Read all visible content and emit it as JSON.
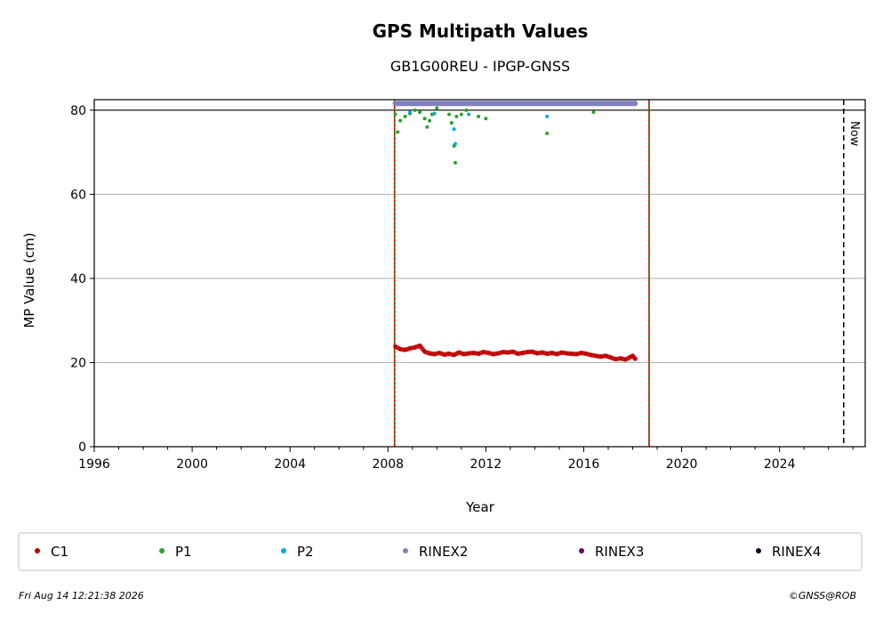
{
  "chart_data": {
    "type": "scatter",
    "title": "GPS Multipath Values",
    "subtitle": "GB1G00REU - IPGP-GNSS",
    "xlabel": "Year",
    "ylabel": "MP Value (cm)",
    "xlim": [
      1996,
      2027.5
    ],
    "ylim": [
      0,
      82.5
    ],
    "xticks": [
      1996,
      2000,
      2004,
      2008,
      2012,
      2016,
      2020,
      2024
    ],
    "xtick_labels": [
      "1996",
      "2000",
      "2004",
      "2008",
      "2012",
      "2016",
      "2020",
      "2024"
    ],
    "yticks": [
      0,
      20,
      40,
      60,
      80
    ],
    "ytick_labels": [
      "0",
      "20",
      "40",
      "60",
      "80"
    ],
    "grid": "horizontal",
    "reference_line_y": 80,
    "now_label": "Now",
    "now_x": 2026.62,
    "vertical_lines": [
      {
        "x": 2008.27,
        "style": "red-green-dotted"
      },
      {
        "x": 2018.67,
        "style": "red-green-dotted"
      }
    ],
    "legend_placement": "bottom",
    "series": [
      {
        "name": "C1",
        "color": "#c00000",
        "points": [
          [
            2008.3,
            23.8
          ],
          [
            2008.5,
            23.2
          ],
          [
            2008.7,
            23.0
          ],
          [
            2008.9,
            23.4
          ],
          [
            2009.1,
            23.6
          ],
          [
            2009.3,
            24.0
          ],
          [
            2009.5,
            22.6
          ],
          [
            2009.7,
            22.2
          ],
          [
            2009.9,
            22.0
          ],
          [
            2010.1,
            22.3
          ],
          [
            2010.3,
            21.9
          ],
          [
            2010.5,
            22.1
          ],
          [
            2010.7,
            21.8
          ],
          [
            2010.9,
            22.4
          ],
          [
            2011.1,
            22.0
          ],
          [
            2011.3,
            22.2
          ],
          [
            2011.5,
            22.3
          ],
          [
            2011.7,
            22.1
          ],
          [
            2011.9,
            22.5
          ],
          [
            2012.1,
            22.3
          ],
          [
            2012.3,
            22.0
          ],
          [
            2012.5,
            22.2
          ],
          [
            2012.7,
            22.5
          ],
          [
            2012.9,
            22.4
          ],
          [
            2013.1,
            22.6
          ],
          [
            2013.3,
            22.1
          ],
          [
            2013.5,
            22.3
          ],
          [
            2013.7,
            22.5
          ],
          [
            2013.9,
            22.6
          ],
          [
            2014.1,
            22.2
          ],
          [
            2014.3,
            22.4
          ],
          [
            2014.5,
            22.1
          ],
          [
            2014.7,
            22.3
          ],
          [
            2014.9,
            22.0
          ],
          [
            2015.1,
            22.4
          ],
          [
            2015.3,
            22.2
          ],
          [
            2015.5,
            22.1
          ],
          [
            2015.7,
            22.0
          ],
          [
            2015.9,
            22.3
          ],
          [
            2016.1,
            22.1
          ],
          [
            2016.3,
            21.8
          ],
          [
            2016.5,
            21.6
          ],
          [
            2016.7,
            21.4
          ],
          [
            2016.9,
            21.6
          ],
          [
            2017.1,
            21.2
          ],
          [
            2017.3,
            20.8
          ],
          [
            2017.5,
            21.0
          ],
          [
            2017.7,
            20.7
          ],
          [
            2017.9,
            21.3
          ],
          [
            2018.0,
            21.6
          ],
          [
            2018.1,
            20.9
          ]
        ]
      },
      {
        "name": "P1",
        "color": "#2ca02c",
        "points": [
          [
            2008.3,
            79.0
          ],
          [
            2008.4,
            74.8
          ],
          [
            2008.5,
            77.5
          ],
          [
            2008.7,
            78.5
          ],
          [
            2008.9,
            79.2
          ],
          [
            2009.1,
            80.0
          ],
          [
            2009.3,
            79.5
          ],
          [
            2009.5,
            78.0
          ],
          [
            2009.6,
            76.0
          ],
          [
            2009.7,
            77.5
          ],
          [
            2009.8,
            79.0
          ],
          [
            2010.0,
            80.5
          ],
          [
            2010.5,
            79.0
          ],
          [
            2010.6,
            77.0
          ],
          [
            2010.7,
            71.5
          ],
          [
            2010.75,
            67.5
          ],
          [
            2010.8,
            78.5
          ],
          [
            2011.0,
            79.0
          ],
          [
            2011.2,
            80.0
          ],
          [
            2011.7,
            78.5
          ],
          [
            2012.0,
            78.0
          ],
          [
            2014.5,
            74.5
          ],
          [
            2016.4,
            79.5
          ]
        ]
      },
      {
        "name": "P2",
        "color": "#00a8e8",
        "points": [
          [
            2008.9,
            79.5
          ],
          [
            2009.9,
            79.2
          ],
          [
            2010.7,
            75.5
          ],
          [
            2010.75,
            72.0
          ],
          [
            2011.3,
            79.0
          ],
          [
            2014.5,
            78.5
          ]
        ]
      },
      {
        "name": "RINEX2",
        "color": "#8080c0",
        "points": [
          [
            2008.3,
            81.6
          ],
          [
            2009.0,
            81.6
          ],
          [
            2010.0,
            81.6
          ],
          [
            2011.0,
            81.6
          ],
          [
            2012.0,
            81.6
          ],
          [
            2013.0,
            81.6
          ],
          [
            2014.0,
            81.6
          ],
          [
            2015.0,
            81.6
          ],
          [
            2016.0,
            81.6
          ],
          [
            2017.0,
            81.6
          ],
          [
            2018.1,
            81.6
          ]
        ]
      },
      {
        "name": "RINEX3",
        "color": "#6a005f",
        "points": []
      },
      {
        "name": "RINEX4",
        "color": "#1a0020",
        "points": []
      }
    ]
  },
  "footer": {
    "timestamp": "Fri Aug 14 12:21:38 2026",
    "credit": "©GNSS@ROB"
  }
}
